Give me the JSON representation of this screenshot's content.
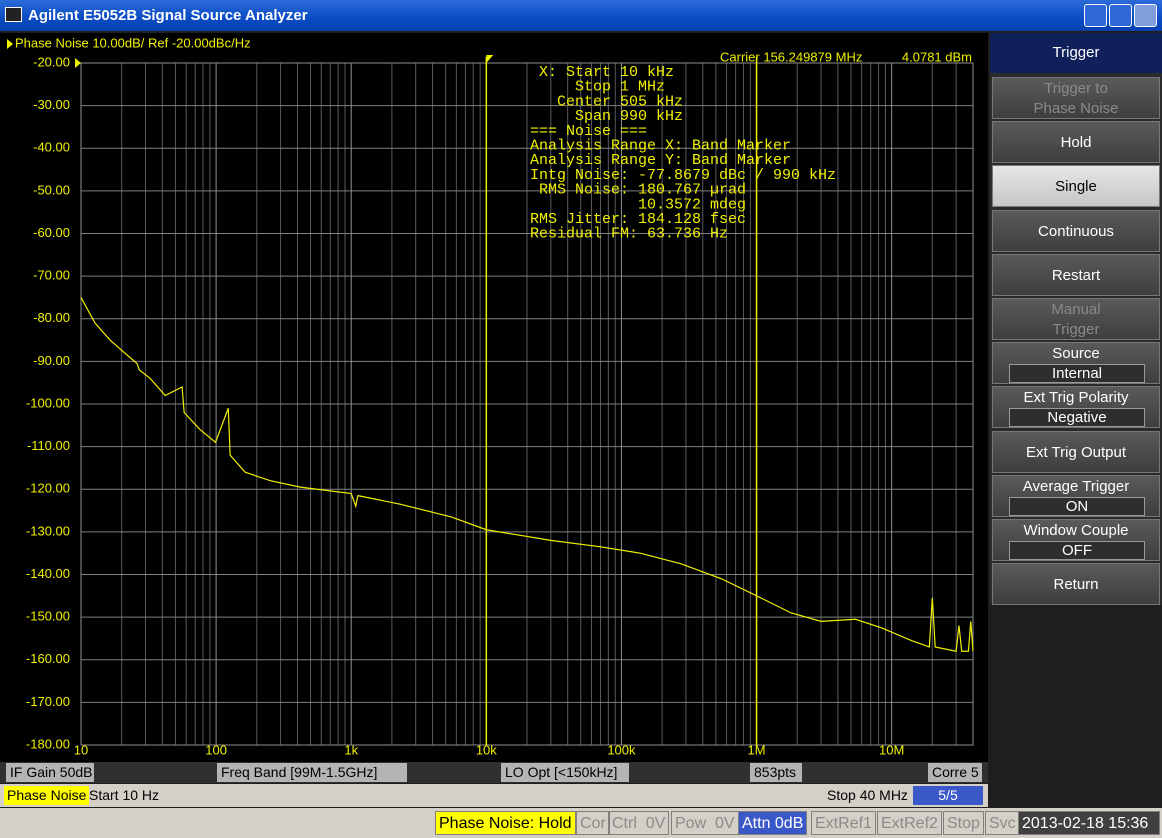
{
  "window": {
    "title": "Agilent E5052B Signal Source Analyzer"
  },
  "chart_data": {
    "type": "line",
    "title": "Phase Noise 10.00dB/ Ref -20.00dBc/Hz",
    "x": [
      10,
      12.7,
      16.4,
      21,
      26,
      27,
      32.5,
      42,
      56,
      58,
      76,
      99,
      123,
      127,
      164,
      252,
      420,
      1000,
      1080,
      1120,
      2300,
      5500,
      10000,
      30000,
      70000,
      138000,
      276000,
      550000,
      1000000,
      1800000,
      3000000,
      5400000,
      8400000,
      14000000,
      19000000,
      20000000,
      21000000,
      30000000,
      31500000,
      33000000,
      37000000,
      38500000,
      40000000
    ],
    "values": [
      -75,
      -81,
      -85,
      -88,
      -90.5,
      -92,
      -94,
      -98,
      -96,
      -102,
      -106,
      -109,
      -101,
      -112,
      -116,
      -118,
      -119.5,
      -121,
      -124,
      -121.5,
      -123.5,
      -126.5,
      -129.5,
      -132,
      -133.5,
      -135,
      -137.5,
      -141,
      -145,
      -149,
      -151,
      -150.5,
      -152.5,
      -155.5,
      -157,
      -145.5,
      -157,
      -158,
      -152,
      -158,
      -158,
      -151,
      -158
    ],
    "color": "#f0f000",
    "xscale": "log",
    "grid": true,
    "xlim": [
      10,
      40000000
    ],
    "ylim": [
      -180,
      -20
    ],
    "xticks": [
      10,
      100,
      {
        "value": 1000,
        "label": "1k"
      },
      {
        "value": 10000,
        "label": "10k"
      },
      {
        "value": 100000,
        "label": "100k"
      },
      {
        "value": 1000000,
        "label": "1M"
      },
      {
        "value": 10000000,
        "label": "10M"
      }
    ],
    "xminorticks": [
      20,
      30,
      40,
      50,
      60,
      70,
      80,
      90,
      200,
      300,
      400,
      500,
      600,
      700,
      800,
      900,
      2000,
      3000,
      4000,
      5000,
      6000,
      7000,
      8000,
      9000,
      20000,
      30000,
      40000,
      50000,
      60000,
      70000,
      80000,
      90000,
      200000,
      300000,
      400000,
      500000,
      600000,
      700000,
      800000,
      900000,
      2000000,
      3000000,
      4000000,
      5000000,
      6000000,
      7000000,
      8000000,
      9000000,
      20000000,
      30000000
    ],
    "yticks": [
      {
        "value": -20,
        "label": "-20.00"
      },
      {
        "value": -30,
        "label": "-30.00"
      },
      {
        "value": -40,
        "label": "-40.00"
      },
      {
        "value": -50,
        "label": "-50.00"
      },
      {
        "value": -60,
        "label": "-60.00"
      },
      {
        "value": -70,
        "label": "-70.00"
      },
      {
        "value": -80,
        "label": "-80.00"
      },
      {
        "value": -90,
        "label": "-90.00"
      },
      {
        "value": -100,
        "label": "-100.00"
      },
      {
        "value": -110,
        "label": "-110.00"
      },
      {
        "value": -120,
        "label": "-120.00"
      },
      {
        "value": -130,
        "label": "-130.00"
      },
      {
        "value": -140,
        "label": "-140.00"
      },
      {
        "value": -150,
        "label": "-150.00"
      },
      {
        "value": -160,
        "label": "-160.00"
      },
      {
        "value": -170,
        "label": "-170.00"
      },
      {
        "value": -180,
        "label": "-180.00"
      }
    ],
    "band_markers": [
      10000,
      1000000
    ],
    "carrier": {
      "label": "Carrier 156.249879 MHz",
      "power": "4.0781 dBm"
    },
    "annotations": [
      "X: Start 10 kHz",
      "Stop 1 MHz",
      "Center 505 kHz",
      "Span 990 kHz",
      "=== Noise ===",
      "Analysis Range X: Band Marker",
      "Analysis Range Y: Band Marker",
      "Intg Noise: -77.8679 dBc / 990 kHz",
      "RMS Noise: 180.767 µrad",
      "10.3572 mdeg",
      "RMS Jitter: 184.128 fsec",
      "Residual FM: 63.736 Hz"
    ]
  },
  "channel_bar": [
    "IF Gain 50dB",
    "Freq Band [99M-1.5GHz]",
    "LO Opt [<150kHz]",
    "853pts",
    "Corre 5"
  ],
  "sweep_bar": {
    "measurement": "Phase Noise",
    "start": "Start 10 Hz",
    "stop": "Stop 40 MHz",
    "trace": "5/5"
  },
  "status_bar": [
    "Phase Noise: Hold",
    "Cor",
    "Ctrl  0V",
    "Pow  0V",
    "Attn 0dB",
    "ExtRef1",
    "ExtRef2",
    "Stop",
    "Svc",
    "2013-02-18 15:36"
  ],
  "softkeys": {
    "header": "Trigger",
    "keys": [
      {
        "lines": [
          "Trigger to",
          "Phase Noise"
        ]
      },
      {
        "lines": [
          "Hold"
        ]
      },
      {
        "lines": [
          "Single"
        ]
      },
      {
        "lines": [
          "Continuous"
        ]
      },
      {
        "lines": [
          "Restart"
        ]
      },
      {
        "lines": [
          "Manual",
          "Trigger"
        ]
      },
      {
        "lines": [
          "Source"
        ],
        "value": "Internal"
      },
      {
        "lines": [
          "Ext Trig Polarity"
        ],
        "value": "Negative"
      },
      {
        "lines": [
          "Ext Trig Output"
        ]
      },
      {
        "lines": [
          "Average Trigger"
        ],
        "value": "ON"
      },
      {
        "lines": [
          "Window Couple"
        ],
        "value": "OFF"
      },
      {
        "lines": [
          "Return"
        ]
      }
    ]
  }
}
